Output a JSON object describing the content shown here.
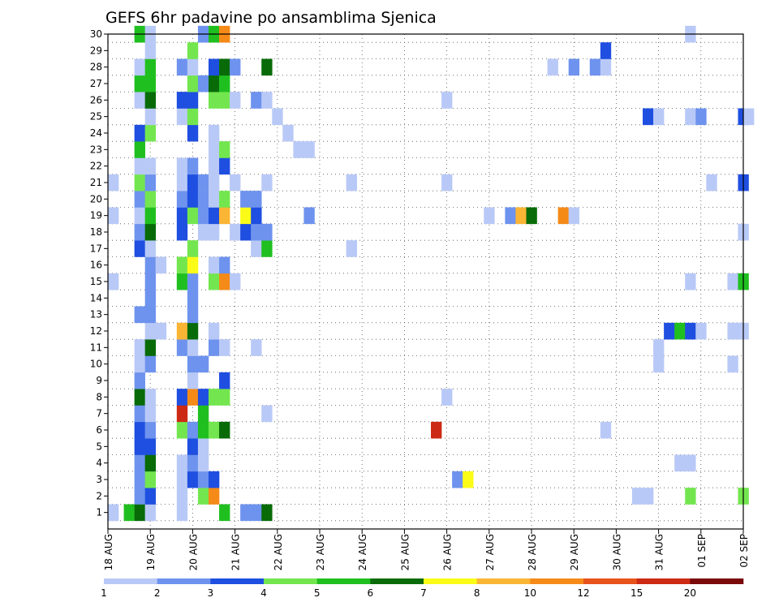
{
  "chart_data": {
    "type": "heatmap",
    "title": "GEFS 6hr padavine po ansamblima Sjenica",
    "xlabel": "",
    "ylabel": "",
    "x_tick_labels": [
      "18 AUG",
      "19 AUG",
      "20 AUG",
      "21 AUG",
      "22 AUG",
      "23 AUG",
      "24 AUG",
      "25 AUG",
      "26 AUG",
      "27 AUG",
      "28 AUG",
      "29 AUG",
      "30 AUG",
      "31 AUG",
      "01 SEP",
      "02 SEP"
    ],
    "y_tick_labels": [
      "1",
      "2",
      "3",
      "4",
      "5",
      "6",
      "7",
      "8",
      "9",
      "10",
      "11",
      "12",
      "13",
      "14",
      "15",
      "16",
      "17",
      "18",
      "19",
      "20",
      "21",
      "22",
      "23",
      "24",
      "25",
      "26",
      "27",
      "28",
      "29",
      "30"
    ],
    "x_step_hours": 6,
    "x_range_steps": [
      0,
      60
    ],
    "y_range_members": [
      0,
      30
    ],
    "grid": "dotted",
    "colorbar": {
      "labels": [
        "1",
        "2",
        "3",
        "4",
        "5",
        "6",
        "7",
        "8",
        "10",
        "12",
        "15",
        "20"
      ],
      "colors": [
        "#b9c9f7",
        "#6e93ee",
        "#1f4fe0",
        "#73e64f",
        "#20bf20",
        "#086b08",
        "#fbfb18",
        "#fbb534",
        "#f58a18",
        "#e8531c",
        "#cc2a14",
        "#7a0a0a"
      ]
    },
    "cells": [
      [
        0.5,
        1,
        1
      ],
      [
        2,
        1,
        5
      ],
      [
        3,
        1,
        6
      ],
      [
        4,
        1,
        1
      ],
      [
        7,
        1,
        1
      ],
      [
        11,
        1,
        5
      ],
      [
        13,
        1,
        2
      ],
      [
        14,
        1,
        2
      ],
      [
        15,
        1,
        6
      ],
      [
        3,
        2,
        2
      ],
      [
        4,
        2,
        3
      ],
      [
        7,
        2,
        1
      ],
      [
        9,
        2,
        4
      ],
      [
        10,
        2,
        9
      ],
      [
        50,
        2,
        1
      ],
      [
        51,
        2,
        1
      ],
      [
        55,
        2,
        4
      ],
      [
        60,
        2,
        4
      ],
      [
        3,
        3,
        2
      ],
      [
        4,
        3,
        4
      ],
      [
        7,
        3,
        1
      ],
      [
        8,
        3,
        3
      ],
      [
        9,
        3,
        2
      ],
      [
        10,
        3,
        3
      ],
      [
        33,
        3,
        2
      ],
      [
        34,
        3,
        7
      ],
      [
        3,
        4,
        2
      ],
      [
        4,
        4,
        6
      ],
      [
        7,
        4,
        1
      ],
      [
        8,
        4,
        2
      ],
      [
        9,
        4,
        1
      ],
      [
        54,
        4,
        1
      ],
      [
        55,
        4,
        1
      ],
      [
        3,
        5,
        3
      ],
      [
        4,
        5,
        3
      ],
      [
        8,
        5,
        3
      ],
      [
        9,
        5,
        1
      ],
      [
        3,
        6,
        3
      ],
      [
        4,
        6,
        2
      ],
      [
        7,
        6,
        4
      ],
      [
        8,
        6,
        2
      ],
      [
        9,
        6,
        5
      ],
      [
        10,
        6,
        4
      ],
      [
        11,
        6,
        6
      ],
      [
        31,
        6,
        11
      ],
      [
        47,
        6,
        1
      ],
      [
        3,
        7,
        2
      ],
      [
        4,
        7,
        1
      ],
      [
        7,
        7,
        11
      ],
      [
        9,
        7,
        5
      ],
      [
        15,
        7,
        1
      ],
      [
        3,
        8,
        6
      ],
      [
        4,
        8,
        1
      ],
      [
        7,
        8,
        3
      ],
      [
        8,
        8,
        9
      ],
      [
        9,
        8,
        3
      ],
      [
        10,
        8,
        4
      ],
      [
        11,
        8,
        4
      ],
      [
        32,
        8,
        1
      ],
      [
        3,
        9,
        2
      ],
      [
        8,
        9,
        1
      ],
      [
        11,
        9,
        3
      ],
      [
        3,
        10,
        1
      ],
      [
        4,
        10,
        2
      ],
      [
        8,
        10,
        2
      ],
      [
        9,
        10,
        2
      ],
      [
        52,
        10,
        1
      ],
      [
        59,
        10,
        1
      ],
      [
        3,
        11,
        1
      ],
      [
        4,
        11,
        6
      ],
      [
        7,
        11,
        2
      ],
      [
        8,
        11,
        1
      ],
      [
        10,
        11,
        2
      ],
      [
        11,
        11,
        1
      ],
      [
        14,
        11,
        1
      ],
      [
        52,
        11,
        1
      ],
      [
        4,
        12,
        1
      ],
      [
        5,
        12,
        1
      ],
      [
        7,
        12,
        8
      ],
      [
        8,
        12,
        6
      ],
      [
        10,
        12,
        1
      ],
      [
        53,
        12,
        3
      ],
      [
        54,
        12,
        5
      ],
      [
        55,
        12,
        3
      ],
      [
        56,
        12,
        1
      ],
      [
        59,
        12,
        1
      ],
      [
        60,
        12,
        1
      ],
      [
        3,
        13,
        2
      ],
      [
        4,
        13,
        2
      ],
      [
        8,
        13,
        2
      ],
      [
        4,
        14,
        2
      ],
      [
        8,
        14,
        2
      ],
      [
        0.5,
        15,
        1
      ],
      [
        4,
        15,
        2
      ],
      [
        7,
        15,
        5
      ],
      [
        8,
        15,
        2
      ],
      [
        10,
        15,
        4
      ],
      [
        11,
        15,
        9
      ],
      [
        12,
        15,
        1
      ],
      [
        55,
        15,
        1
      ],
      [
        59,
        15,
        1
      ],
      [
        60,
        15,
        5
      ],
      [
        4,
        16,
        2
      ],
      [
        5,
        16,
        1
      ],
      [
        7,
        16,
        4
      ],
      [
        8,
        16,
        7
      ],
      [
        10,
        16,
        1
      ],
      [
        11,
        16,
        2
      ],
      [
        3,
        17,
        3
      ],
      [
        4,
        17,
        1
      ],
      [
        8,
        17,
        4
      ],
      [
        14,
        17,
        1
      ],
      [
        15,
        17,
        5
      ],
      [
        23,
        17,
        1
      ],
      [
        3,
        18,
        2
      ],
      [
        4,
        18,
        6
      ],
      [
        7,
        18,
        3
      ],
      [
        9,
        18,
        1
      ],
      [
        10,
        18,
        1
      ],
      [
        12,
        18,
        1
      ],
      [
        13,
        18,
        3
      ],
      [
        14,
        18,
        2
      ],
      [
        15,
        18,
        2
      ],
      [
        60,
        18,
        1
      ],
      [
        0.5,
        19,
        1
      ],
      [
        3,
        19,
        1
      ],
      [
        4,
        19,
        5
      ],
      [
        7,
        19,
        3
      ],
      [
        8,
        19,
        4
      ],
      [
        9,
        19,
        2
      ],
      [
        10,
        19,
        3
      ],
      [
        11,
        19,
        8
      ],
      [
        13,
        19,
        7
      ],
      [
        14,
        19,
        3
      ],
      [
        19,
        19,
        2
      ],
      [
        36,
        19,
        1
      ],
      [
        38,
        19,
        2
      ],
      [
        39,
        19,
        8
      ],
      [
        40,
        19,
        6
      ],
      [
        43,
        19,
        9
      ],
      [
        44,
        19,
        1
      ],
      [
        3,
        20,
        2
      ],
      [
        4,
        20,
        4
      ],
      [
        7,
        20,
        2
      ],
      [
        8,
        20,
        3
      ],
      [
        9,
        20,
        2
      ],
      [
        10,
        20,
        1
      ],
      [
        11,
        20,
        4
      ],
      [
        13,
        20,
        2
      ],
      [
        14,
        20,
        2
      ],
      [
        0.5,
        21,
        1
      ],
      [
        3,
        21,
        4
      ],
      [
        4,
        21,
        2
      ],
      [
        7,
        21,
        1
      ],
      [
        8,
        21,
        3
      ],
      [
        9,
        21,
        2
      ],
      [
        10,
        21,
        1
      ],
      [
        12,
        21,
        1
      ],
      [
        15,
        21,
        1
      ],
      [
        23,
        21,
        1
      ],
      [
        32,
        21,
        1
      ],
      [
        57,
        21,
        1
      ],
      [
        60,
        21,
        3
      ],
      [
        3,
        22,
        1
      ],
      [
        4,
        22,
        1
      ],
      [
        7,
        22,
        1
      ],
      [
        8,
        22,
        2
      ],
      [
        10,
        22,
        1
      ],
      [
        11,
        22,
        3
      ],
      [
        3,
        23,
        5
      ],
      [
        10,
        23,
        1
      ],
      [
        11,
        23,
        4
      ],
      [
        18,
        23,
        1
      ],
      [
        19,
        23,
        1
      ],
      [
        3,
        24,
        3
      ],
      [
        4,
        24,
        4
      ],
      [
        8,
        24,
        3
      ],
      [
        10,
        24,
        1
      ],
      [
        17,
        24,
        1
      ],
      [
        4,
        25,
        1
      ],
      [
        7,
        25,
        1
      ],
      [
        8,
        25,
        4
      ],
      [
        16,
        25,
        1
      ],
      [
        51,
        25,
        3
      ],
      [
        52,
        25,
        1
      ],
      [
        55,
        25,
        1
      ],
      [
        56,
        25,
        2
      ],
      [
        60,
        25,
        3
      ],
      [
        60.5,
        25,
        1
      ],
      [
        3,
        26,
        1
      ],
      [
        4,
        26,
        6
      ],
      [
        7,
        26,
        3
      ],
      [
        8,
        26,
        3
      ],
      [
        10,
        26,
        4
      ],
      [
        11,
        26,
        4
      ],
      [
        12,
        26,
        1
      ],
      [
        14,
        26,
        2
      ],
      [
        15,
        26,
        1
      ],
      [
        32,
        26,
        1
      ],
      [
        3,
        27,
        5
      ],
      [
        4,
        27,
        5
      ],
      [
        8,
        27,
        4
      ],
      [
        9,
        27,
        2
      ],
      [
        10,
        27,
        6
      ],
      [
        11,
        27,
        5
      ],
      [
        3,
        28,
        1
      ],
      [
        4,
        28,
        5
      ],
      [
        7,
        28,
        2
      ],
      [
        8,
        28,
        1
      ],
      [
        10,
        28,
        3
      ],
      [
        11,
        28,
        6
      ],
      [
        12,
        28,
        2
      ],
      [
        15,
        28,
        6
      ],
      [
        42,
        28,
        1
      ],
      [
        44,
        28,
        2
      ],
      [
        46,
        28,
        2
      ],
      [
        47,
        28,
        1
      ],
      [
        4,
        29,
        1
      ],
      [
        8,
        29,
        4
      ],
      [
        47,
        29,
        3
      ],
      [
        3,
        30,
        5
      ],
      [
        4,
        30,
        1
      ],
      [
        9,
        30,
        2
      ],
      [
        10,
        30,
        5
      ],
      [
        11,
        30,
        9
      ],
      [
        55,
        30,
        1
      ]
    ]
  }
}
